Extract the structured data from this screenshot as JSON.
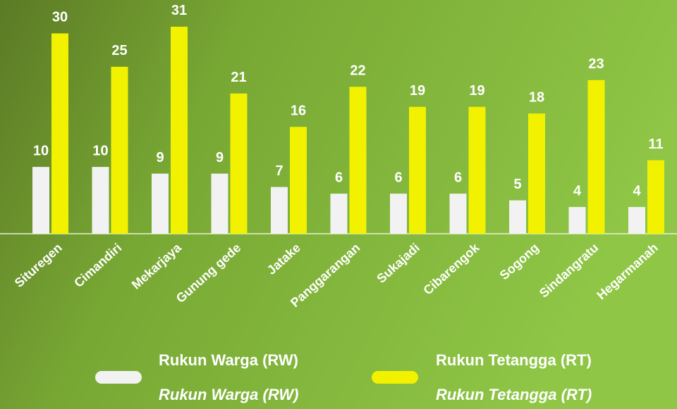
{
  "chart_data": {
    "type": "bar",
    "categories": [
      "Situregen",
      "Cimandiri",
      "Mekarjaya",
      "Gunung gede",
      "Jatake",
      "Panggarangan",
      "Sukajadi",
      "Cibarengok",
      "Sogong",
      "Sindangratu",
      "Hegarmanah"
    ],
    "series": [
      {
        "name": "Rukun Warga (RW)",
        "color": "#f2f2f2",
        "values": [
          10,
          10,
          9,
          9,
          7,
          6,
          6,
          6,
          5,
          4,
          4
        ]
      },
      {
        "name": "Rukun Tetangga (RT)",
        "color": "#f2f200",
        "values": [
          30,
          25,
          31,
          21,
          16,
          22,
          19,
          19,
          18,
          23,
          11
        ]
      }
    ],
    "legend_translations": [
      "Rukun Warga (RW)",
      "Rukun Tetangga (RT)"
    ],
    "ylim": [
      0,
      35
    ]
  }
}
